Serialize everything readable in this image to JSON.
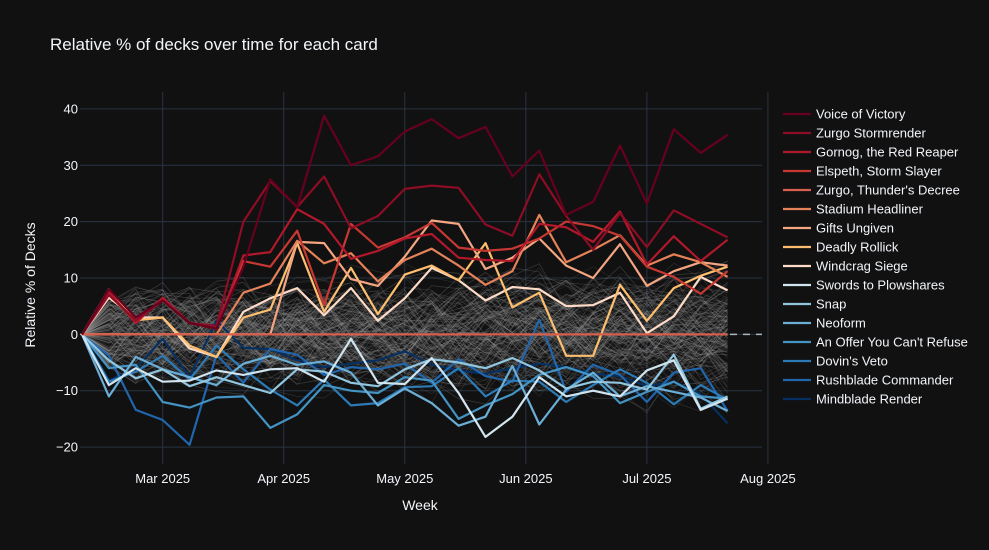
{
  "chart_data": {
    "type": "line",
    "title": "Relative  % of decks over time for each card",
    "xlabel": "Week",
    "ylabel": "Relative % of Decks",
    "ylim": [
      -23,
      43
    ],
    "yticks": [
      40,
      30,
      20,
      10,
      0,
      -10,
      -20
    ],
    "ytick_labels": [
      "40",
      "30",
      "20",
      "10",
      "0",
      "−10",
      "−20"
    ],
    "xlim": [
      0,
      26
    ],
    "xticks": [
      {
        "x": 3,
        "label": "Mar 2025"
      },
      {
        "x": 7.5,
        "label": "Apr 2025"
      },
      {
        "x": 12,
        "label": "May 2025"
      },
      {
        "x": 16.5,
        "label": "Jun 2025"
      },
      {
        "x": 21,
        "label": "Jul 2025"
      },
      {
        "x": 25.5,
        "label": "Aug 2025"
      }
    ],
    "grid": true,
    "legend_position": "right",
    "background_note": "many faint grey lines for all other cards",
    "series": [
      {
        "name": "Voice of Victory",
        "color": "#67001f",
        "values": [
          0,
          8,
          3,
          6,
          2,
          1,
          12,
          27.5,
          22.5,
          38.8,
          30,
          31.6,
          36,
          38.2,
          34.8,
          36.8,
          28,
          32.6,
          21.2,
          23.5,
          33.5,
          23.2,
          36.4,
          32.2,
          35.4
        ]
      },
      {
        "name": "Zurgo Stormrender",
        "color": "#8c0d25",
        "values": [
          0,
          7,
          2.5,
          6,
          2,
          1.5,
          20,
          27.2,
          22.6,
          28,
          18.8,
          21,
          25.8,
          26.4,
          26,
          19.5,
          17.5,
          28.4,
          21,
          15,
          21.5,
          15.5,
          22,
          19.6,
          17.2
        ]
      },
      {
        "name": "Gornog, the Red Reaper",
        "color": "#b2182b",
        "values": [
          0,
          7.5,
          2,
          6.5,
          2,
          1,
          14,
          14.6,
          22.2,
          19.6,
          13.4,
          14.8,
          17,
          17.8,
          13.6,
          13.2,
          13,
          19.6,
          19,
          16.4,
          21.8,
          12.4,
          17.4,
          13,
          16.8
        ]
      },
      {
        "name": "Elspeth, Storm Slayer",
        "color": "#c73832",
        "values": [
          0,
          7,
          2.5,
          6,
          2,
          1,
          13,
          12,
          18.4,
          5.2,
          19.6,
          15.4,
          17.2,
          19.8,
          15.4,
          14.8,
          15.2,
          17,
          20,
          19.2,
          17.5,
          12,
          10.2,
          7.2,
          11.2
        ]
      },
      {
        "name": "Zurgo, Thunder's Decree",
        "color": "#d6604d",
        "values": [
          0,
          0,
          0,
          0,
          0,
          0,
          0,
          0,
          0,
          0,
          0,
          0,
          0,
          0,
          0,
          0,
          0,
          0,
          0,
          0,
          0,
          0,
          0,
          0,
          0
        ]
      },
      {
        "name": "Stadium Headliner",
        "color": "#e58259",
        "values": [
          0,
          0,
          0,
          0,
          0,
          0,
          7.4,
          9,
          16.6,
          12.6,
          14.4,
          9.4,
          13.2,
          15.2,
          12.2,
          8.8,
          11.2,
          21.2,
          12.8,
          15,
          17.6,
          12.2,
          14.2,
          12.8,
          10.2
        ]
      },
      {
        "name": "Gifts Ungiven",
        "color": "#f4a582",
        "values": [
          0,
          0,
          0,
          0,
          0,
          0,
          0,
          0,
          16.4,
          16.2,
          9.8,
          8.6,
          13.8,
          20.2,
          19.6,
          11.6,
          13.6,
          17,
          12.2,
          10,
          16,
          8.6,
          11.2,
          12.8,
          12.2
        ]
      },
      {
        "name": "Deadly Rollick",
        "color": "#fdbf6f",
        "values": [
          0,
          8,
          2.5,
          3,
          -2,
          -4,
          3,
          4.4,
          16.2,
          4,
          11.8,
          3.6,
          10.6,
          12.2,
          9.6,
          16.2,
          4.8,
          7.4,
          -3.8,
          -3.8,
          8.8,
          2.4,
          8.2,
          10.4,
          12
        ]
      },
      {
        "name": "Windcrag Siege",
        "color": "#fddbc7",
        "values": [
          0,
          6.5,
          3,
          3,
          -2.5,
          -4,
          4,
          6.4,
          8.2,
          3.4,
          8.2,
          2.4,
          6.4,
          11.8,
          9.6,
          6,
          8.4,
          8,
          5,
          5.2,
          7.4,
          0.2,
          3.2,
          10.2,
          7.8
        ]
      },
      {
        "name": "Swords to Plowshares",
        "color": "#d1e5f0",
        "values": [
          0,
          -9,
          -6,
          -8.4,
          -8.2,
          -6.4,
          -7.2,
          -6.2,
          -6,
          -8.4,
          -0.8,
          -8.6,
          -8.8,
          -4.2,
          -10.4,
          -18.2,
          -14.6,
          -7.6,
          -11,
          -10,
          -11,
          -6.4,
          -4.6,
          -13.4,
          -11.4
        ]
      },
      {
        "name": "Snap",
        "color": "#92c5de",
        "values": [
          0,
          -4.6,
          -7.8,
          -6.2,
          -9.2,
          -7.6,
          -9,
          -10.4,
          -6.2,
          -6.6,
          -8.6,
          -9.2,
          -6.2,
          -4.4,
          -5,
          -6,
          -4.2,
          -6.4,
          -9.6,
          -8.4,
          -8.6,
          -9.8,
          -3.6,
          -13.2,
          -11
        ]
      },
      {
        "name": "Neoform",
        "color": "#6baed6",
        "values": [
          0,
          -11,
          -4,
          -6.2,
          -7.6,
          -9,
          -5.2,
          -3.8,
          -5.4,
          -4.8,
          -6.8,
          -12.6,
          -9.6,
          -12.2,
          -16.2,
          -14.6,
          -5.6,
          -16,
          -9.8,
          -6.8,
          -11,
          -9.2,
          -10.2,
          -11.2,
          -13.6
        ]
      },
      {
        "name": "An Offer You Can't Refuse",
        "color": "#4393c3",
        "values": [
          0,
          -6,
          -5.4,
          -12,
          -13,
          -11.2,
          -11,
          -16.6,
          -14.2,
          -9,
          -10,
          -10.4,
          -7.6,
          -8.2,
          -15,
          -12.6,
          -10.6,
          -7.2,
          -5.8,
          -7.4,
          -12.2,
          -10.2,
          -8.4,
          -11,
          -11.4
        ]
      },
      {
        "name": "Dovin's Veto",
        "color": "#2c7bb6",
        "values": [
          0,
          -8.4,
          -6.6,
          -3.8,
          -8,
          -2,
          -6.2,
          -9.8,
          -12.6,
          -8,
          -12.6,
          -12.2,
          -9.4,
          -9.2,
          -6,
          -11,
          -8.2,
          -8.4,
          -12,
          -9,
          -6.2,
          -8.6,
          -12.4,
          -9,
          -11.6
        ]
      },
      {
        "name": "Rushblade Commander",
        "color": "#2166ac",
        "values": [
          0,
          -3.8,
          -13.4,
          -15.2,
          -19.6,
          -3.6,
          -8.6,
          -2.6,
          -3.6,
          -7.2,
          -5.8,
          -6.2,
          -5.2,
          -8.6,
          -4.4,
          -7.4,
          -8.4,
          2.6,
          -10.2,
          -5.4,
          -7.2,
          -12,
          -6.8,
          -6,
          -13.6
        ]
      },
      {
        "name": "Mindblade Render",
        "color": "#053061",
        "values": [
          0,
          -8.2,
          -6,
          -0.8,
          -7.6,
          2.4,
          -2.4,
          -2.6,
          -4.6,
          -5.8,
          -5.2,
          -4.6,
          -3,
          -5.4,
          -6.4,
          -7,
          -6,
          -5.2,
          -5.8,
          -7,
          -7.4,
          -9.2,
          -8.4,
          -10.6,
          -15.8
        ]
      }
    ]
  }
}
